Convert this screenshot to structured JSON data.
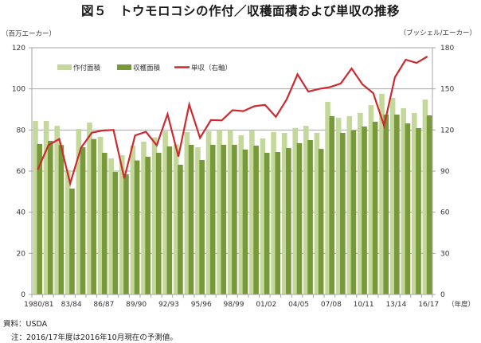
{
  "title": "図５　トウモロコシの作付／収穫面積および単収の推移",
  "units": {
    "left": "（百万エーカー）",
    "right": "（ブッシェル/エーカー）",
    "x": "（年度）"
  },
  "footer": {
    "source": "資料：USDA",
    "note": "注：2016/17年度は2016年10月現在の予測値。"
  },
  "colors": {
    "planted": "#c4d89c",
    "harvested": "#77993a",
    "yield": "#cc2a2f",
    "grid": "#a6a6a6"
  },
  "chart_data": {
    "type": "bar",
    "title": "図５　トウモロコシの作付／収穫面積および単収の推移",
    "xlabel": "（年度）",
    "ylabel": "（百万エーカー）",
    "y2label": "（ブッシェル/エーカー）",
    "ylim": [
      0,
      120
    ],
    "y2lim": [
      0,
      180
    ],
    "yticks": [
      0,
      20,
      40,
      60,
      80,
      100,
      120
    ],
    "y2ticks": [
      0,
      30,
      60,
      90,
      120,
      150,
      180
    ],
    "grid": true,
    "legend_position": "top-left inside",
    "xtick_labels": [
      "1980/81",
      "83/84",
      "86/87",
      "89/90",
      "92/93",
      "95/96",
      "98/99",
      "01/02",
      "04/05",
      "07/08",
      "10/11",
      "13/14",
      "16/17"
    ],
    "categories": [
      "1980/81",
      "1981/82",
      "1982/83",
      "1983/84",
      "1984/85",
      "1985/86",
      "1986/87",
      "1987/88",
      "1988/89",
      "1989/90",
      "1990/91",
      "1991/92",
      "1992/93",
      "1993/94",
      "1994/95",
      "1995/96",
      "1996/97",
      "1997/98",
      "1998/99",
      "1999/00",
      "2000/01",
      "2001/02",
      "2002/03",
      "2003/04",
      "2004/05",
      "2005/06",
      "2006/07",
      "2007/08",
      "2008/09",
      "2009/10",
      "2010/11",
      "2011/12",
      "2012/13",
      "2013/14",
      "2014/15",
      "2015/16",
      "2016/17"
    ],
    "series": [
      {
        "name": "作付面積",
        "type": "bar",
        "axis": "left",
        "values": [
          84.4,
          84.4,
          82,
          60.4,
          80.5,
          83.6,
          76.7,
          66.2,
          67.7,
          72.4,
          74.3,
          76.4,
          79.4,
          73,
          79,
          71.6,
          79.4,
          80,
          80,
          77.4,
          79.7,
          75.9,
          79,
          78.6,
          81,
          82,
          78.6,
          93.7,
          85.9,
          86.7,
          88.3,
          92.1,
          97.6,
          95.6,
          90.6,
          88.3,
          94.8
        ]
      },
      {
        "name": "収穫面積",
        "type": "bar",
        "axis": "left",
        "values": [
          73.2,
          74.7,
          72.7,
          51.5,
          71.6,
          75.6,
          68.9,
          59.6,
          58.4,
          65.2,
          67,
          68.9,
          72,
          63.1,
          72.8,
          65.4,
          72.8,
          72.8,
          72.8,
          70.5,
          72.4,
          68.9,
          69.3,
          71.2,
          73.6,
          75.1,
          70.8,
          86.7,
          78.6,
          79.8,
          81.7,
          84,
          87.5,
          87.5,
          83.2,
          80.9,
          87.1
        ]
      },
      {
        "name": "単収（右軸）",
        "type": "line",
        "axis": "right",
        "values": [
          91,
          109,
          113.4,
          81,
          107,
          118,
          119.6,
          120,
          84.7,
          116,
          118.7,
          108.8,
          131.6,
          100.6,
          138.6,
          114.2,
          127.2,
          127,
          134.4,
          133.8,
          137.3,
          138.3,
          129.6,
          142.3,
          160.6,
          148,
          150,
          151.3,
          153.9,
          164.9,
          153.3,
          146.9,
          123.1,
          158.5,
          171.3,
          168.9,
          173.6
        ]
      }
    ]
  }
}
